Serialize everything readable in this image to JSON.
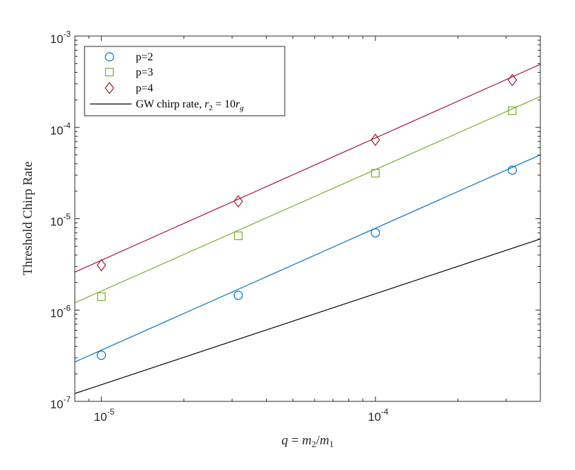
{
  "chart_data": {
    "type": "scatter",
    "xlabel": {
      "var": "q",
      "eq": " = ",
      "num": "m",
      "num_sub": "2",
      "slash": "/",
      "den": "m",
      "den_sub": "1"
    },
    "ylabel": "Threshold Chirp Rate",
    "x_scale": "log",
    "y_scale": "log",
    "xlim": [
      8e-06,
      0.0004
    ],
    "ylim": [
      1e-07,
      0.001
    ],
    "x_ticks": [
      {
        "value": 1e-05,
        "base": "10",
        "exp": "-5"
      },
      {
        "value": 0.0001,
        "base": "10",
        "exp": "-4"
      }
    ],
    "y_ticks": [
      {
        "value": 1e-07,
        "base": "10",
        "exp": "-7"
      },
      {
        "value": 1e-06,
        "base": "10",
        "exp": "-6"
      },
      {
        "value": 1e-05,
        "base": "10",
        "exp": "-5"
      },
      {
        "value": 0.0001,
        "base": "10",
        "exp": "-4"
      },
      {
        "value": 0.001,
        "base": "10",
        "exp": "-3"
      }
    ],
    "grid": false,
    "legend_position": "top-left",
    "series": [
      {
        "name": "p=2",
        "marker": "circle",
        "color": "#0072BD",
        "points": [
          [
            1e-05,
            3.2e-07
          ],
          [
            3.16e-05,
            1.45e-06
          ],
          [
            0.0001,
            7e-06
          ],
          [
            0.000316,
            3.4e-05
          ]
        ],
        "fit": [
          [
            8e-06,
            2.7e-07
          ],
          [
            0.0004,
            5e-05
          ]
        ]
      },
      {
        "name": "p=3",
        "marker": "square",
        "color": "#77AC30",
        "points": [
          [
            1e-05,
            1.4e-06
          ],
          [
            3.16e-05,
            6.5e-06
          ],
          [
            0.0001,
            3.15e-05
          ],
          [
            0.000316,
            0.000152
          ]
        ],
        "fit": [
          [
            8e-06,
            1.2e-06
          ],
          [
            0.0004,
            0.000218
          ]
        ]
      },
      {
        "name": "p=4",
        "marker": "diamond",
        "color": "#A2142F",
        "points": [
          [
            1e-05,
            3.1e-06
          ],
          [
            3.16e-05,
            1.55e-05
          ],
          [
            0.0001,
            7.3e-05
          ],
          [
            0.000316,
            0.00033
          ]
        ],
        "fit": [
          [
            8e-06,
            2.6e-06
          ],
          [
            0.0004,
            0.00049
          ]
        ]
      },
      {
        "name_text": "GW chirp rate, ",
        "name_math": {
          "var": "r",
          "sub": "2",
          "eq": " = 10",
          "var2": "r",
          "sub2": "g"
        },
        "marker": "none",
        "color": "#000000",
        "fit": [
          [
            8e-06,
            1.22e-07
          ],
          [
            0.0004,
            6e-06
          ]
        ]
      }
    ]
  }
}
